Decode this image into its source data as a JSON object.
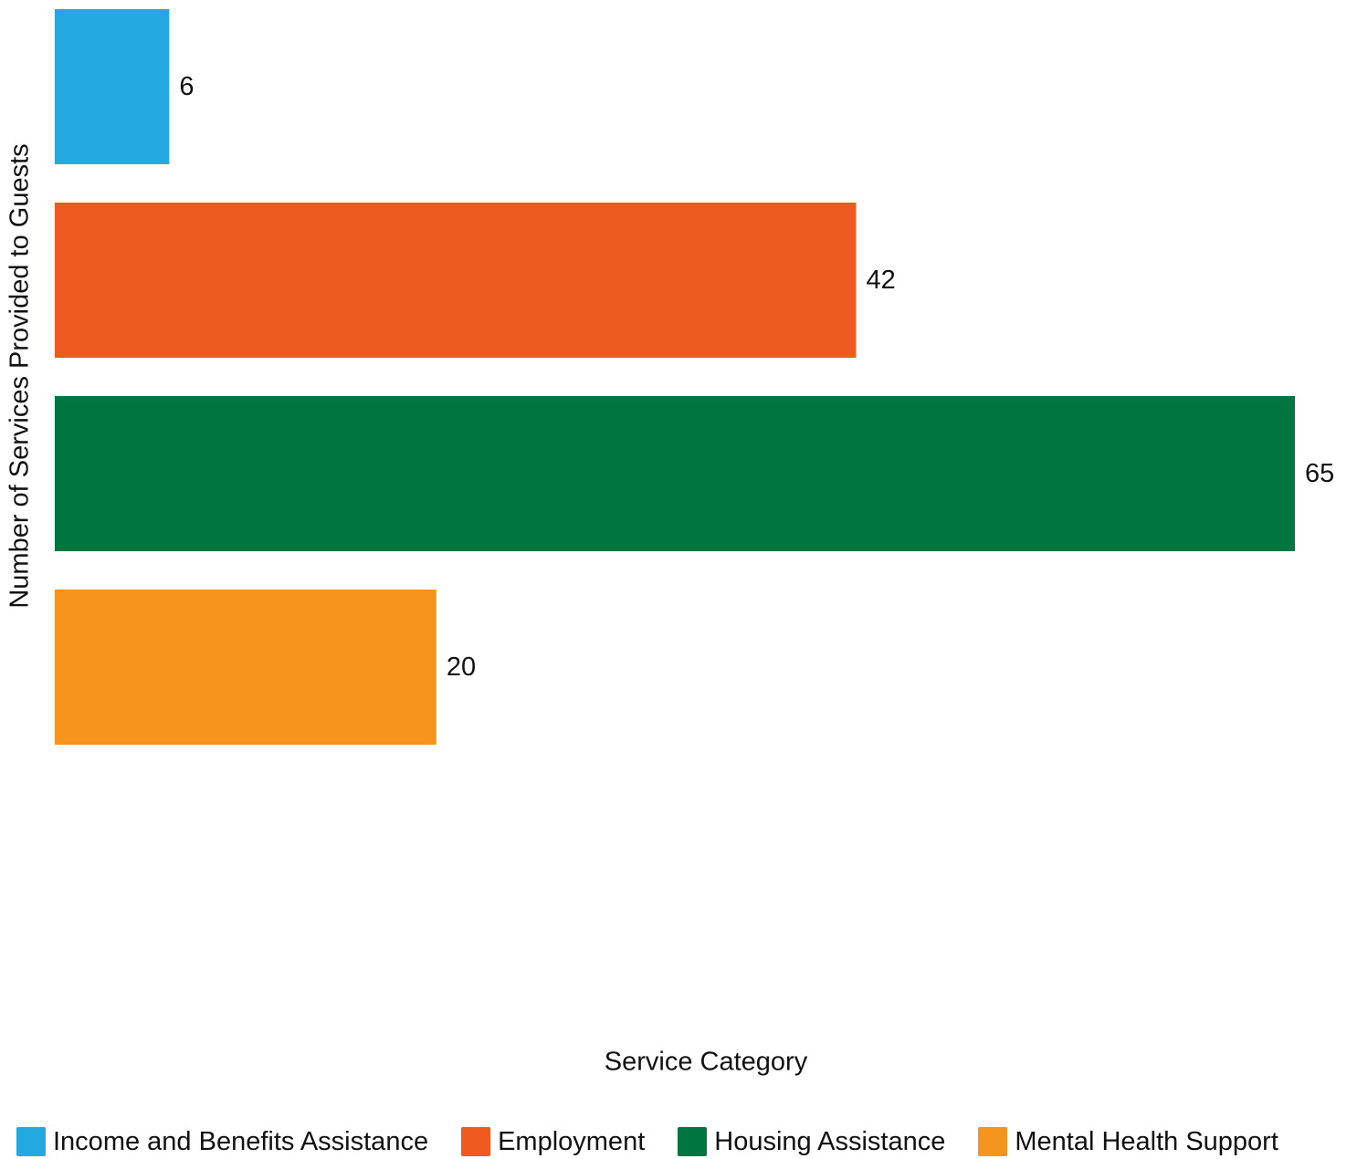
{
  "chart_data": {
    "type": "bar",
    "orientation": "horizontal",
    "categories": [
      "Income and Benefits Assistance",
      "Employment",
      "Housing Assistance",
      "Mental Health Support"
    ],
    "values": [
      6,
      42,
      65,
      20
    ],
    "colors": [
      "#23a8e0",
      "#ef5a23",
      "#007540",
      "#f5941f"
    ],
    "xlabel": "Service Category",
    "ylabel": "Number of Services Provided to Guests",
    "xlim": [
      0,
      65
    ],
    "grid": false,
    "legend_position": "bottom",
    "data_labels": true
  }
}
